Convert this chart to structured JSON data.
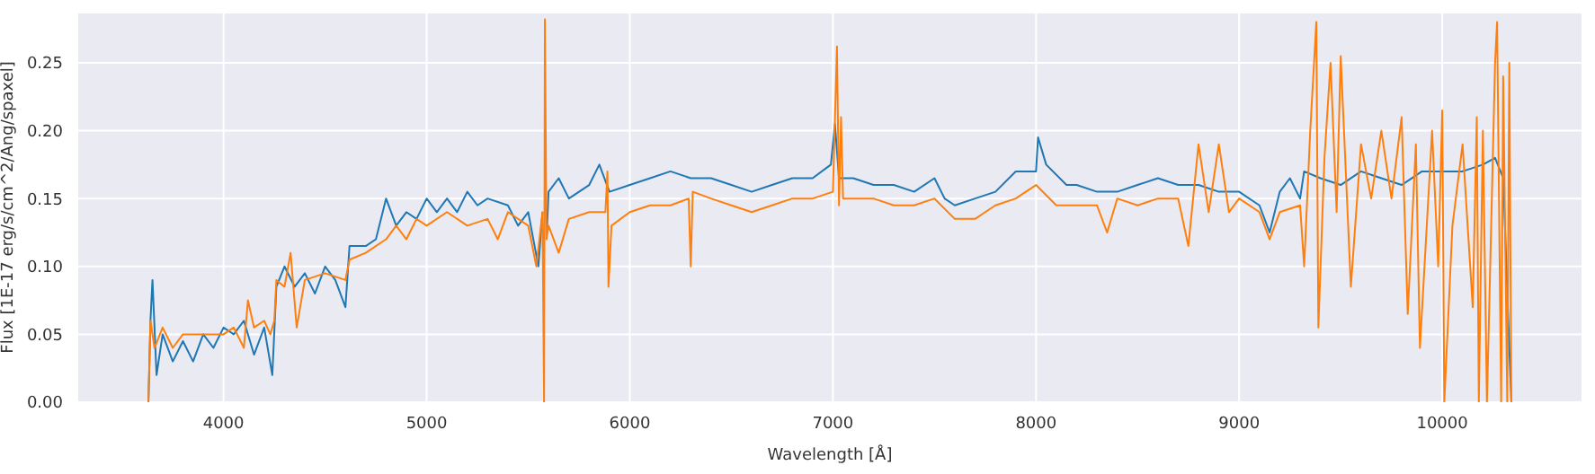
{
  "chart_data": {
    "type": "line",
    "xlabel": "Wavelength [Å]",
    "ylabel": "Flux [1E-17 erg/s/cm^2/Ang/spaxel]",
    "xlim": [
      3280,
      10690
    ],
    "ylim": [
      0,
      0.287
    ],
    "xticks": [
      4000,
      5000,
      6000,
      7000,
      8000,
      9000,
      10000
    ],
    "yticks": [
      {
        "value": 0,
        "label": "0.00"
      },
      {
        "value": 0.05,
        "label": "0.05"
      },
      {
        "value": 0.1,
        "label": "0.10"
      },
      {
        "value": 0.15,
        "label": "0.15"
      },
      {
        "value": 0.2,
        "label": "0.20"
      },
      {
        "value": 0.25,
        "label": "0.25"
      }
    ],
    "grid": true,
    "series": [
      {
        "color": "#1f77b4",
        "x": [
          3630,
          3640,
          3650,
          3670,
          3700,
          3750,
          3800,
          3850,
          3900,
          3950,
          4000,
          4050,
          4100,
          4150,
          4200,
          4240,
          4260,
          4300,
          4350,
          4400,
          4450,
          4500,
          4550,
          4600,
          4620,
          4700,
          4750,
          4800,
          4850,
          4900,
          4950,
          5000,
          5050,
          5100,
          5150,
          5200,
          5250,
          5300,
          5400,
          5450,
          5500,
          5550,
          5570,
          5580,
          5590,
          5600,
          5650,
          5700,
          5800,
          5850,
          5900,
          6000,
          6100,
          6200,
          6300,
          6400,
          6500,
          6600,
          6700,
          6800,
          6900,
          6990,
          7010,
          7030,
          7100,
          7200,
          7300,
          7400,
          7500,
          7550,
          7600,
          7700,
          7800,
          7900,
          8000,
          8010,
          8050,
          8150,
          8200,
          8300,
          8400,
          8500,
          8600,
          8700,
          8800,
          8900,
          9000,
          9100,
          9150,
          9200,
          9250,
          9300,
          9320,
          9400,
          9500,
          9600,
          9700,
          9800,
          9900,
          10000,
          10100,
          10200,
          10260,
          10300,
          10340
        ],
        "values": [
          0.0,
          0.06,
          0.09,
          0.02,
          0.05,
          0.03,
          0.045,
          0.03,
          0.05,
          0.04,
          0.055,
          0.05,
          0.06,
          0.035,
          0.055,
          0.02,
          0.085,
          0.1,
          0.085,
          0.095,
          0.08,
          0.1,
          0.09,
          0.07,
          0.115,
          0.115,
          0.12,
          0.15,
          0.13,
          0.14,
          0.135,
          0.15,
          0.14,
          0.15,
          0.14,
          0.155,
          0.145,
          0.15,
          0.145,
          0.13,
          0.14,
          0.1,
          0.14,
          null,
          0.12,
          0.155,
          0.165,
          0.15,
          0.16,
          0.175,
          0.155,
          0.16,
          0.165,
          0.17,
          0.165,
          0.165,
          0.16,
          0.155,
          0.16,
          0.165,
          0.165,
          0.175,
          0.205,
          0.165,
          0.165,
          0.16,
          0.16,
          0.155,
          0.165,
          0.15,
          0.145,
          0.15,
          0.155,
          0.17,
          0.17,
          0.195,
          0.175,
          0.16,
          0.16,
          0.155,
          0.155,
          0.16,
          0.165,
          0.16,
          0.16,
          0.155,
          0.155,
          0.145,
          0.125,
          0.155,
          0.165,
          0.15,
          0.17,
          0.165,
          0.16,
          0.17,
          0.165,
          0.16,
          0.17,
          0.17,
          0.17,
          0.175,
          0.18,
          0.165,
          0.0
        ]
      },
      {
        "color": "#ff7f0e",
        "x": [
          3630,
          3640,
          3660,
          3700,
          3750,
          3800,
          3900,
          4000,
          4050,
          4100,
          4120,
          4150,
          4200,
          4230,
          4250,
          4260,
          4300,
          4330,
          4360,
          4400,
          4500,
          4600,
          4620,
          4700,
          4800,
          4850,
          4900,
          4950,
          5000,
          5100,
          5200,
          5300,
          5350,
          5400,
          5500,
          5540,
          5570,
          5578,
          5582,
          5590,
          5600,
          5650,
          5700,
          5800,
          5880,
          5890,
          5895,
          5910,
          6000,
          6100,
          6200,
          6290,
          6300,
          6310,
          6400,
          6500,
          6600,
          6700,
          6800,
          6900,
          7000,
          7020,
          7030,
          7040,
          7050,
          7100,
          7200,
          7300,
          7400,
          7500,
          7600,
          7700,
          7750,
          7800,
          7900,
          8000,
          8100,
          8200,
          8300,
          8350,
          8400,
          8500,
          8600,
          8700,
          8750,
          8800,
          8850,
          8900,
          8950,
          9000,
          9100,
          9150,
          9200,
          9300,
          9320,
          9350,
          9380,
          9390,
          9420,
          9450,
          9480,
          9500,
          9550,
          9600,
          9650,
          9700,
          9750,
          9800,
          9830,
          9870,
          9890,
          9950,
          9980,
          10000,
          10010,
          10050,
          10100,
          10150,
          10170,
          10180,
          10200,
          10220,
          10260,
          10270,
          10290,
          10300,
          10320,
          10330,
          10340
        ],
        "values": [
          0.0,
          0.06,
          0.04,
          0.055,
          0.04,
          0.05,
          0.05,
          0.05,
          0.055,
          0.04,
          0.075,
          0.055,
          0.06,
          0.05,
          0.06,
          0.09,
          0.085,
          0.11,
          0.055,
          0.09,
          0.095,
          0.09,
          0.105,
          0.11,
          0.12,
          0.13,
          0.12,
          0.135,
          0.13,
          0.14,
          0.13,
          0.135,
          0.12,
          0.14,
          0.13,
          0.1,
          0.14,
          0.0,
          0.282,
          0.12,
          0.13,
          0.11,
          0.135,
          0.14,
          0.14,
          0.17,
          0.085,
          0.13,
          0.14,
          0.145,
          0.145,
          0.15,
          0.1,
          0.155,
          0.15,
          0.145,
          0.14,
          0.145,
          0.15,
          0.15,
          0.155,
          0.262,
          0.145,
          0.21,
          0.15,
          0.15,
          0.15,
          0.145,
          0.145,
          0.15,
          0.135,
          0.135,
          0.14,
          0.145,
          0.15,
          0.16,
          0.145,
          0.145,
          0.145,
          0.125,
          0.15,
          0.145,
          0.15,
          0.15,
          0.115,
          0.19,
          0.14,
          0.19,
          0.14,
          0.15,
          0.14,
          0.12,
          0.14,
          0.145,
          0.1,
          0.2,
          0.28,
          0.055,
          0.18,
          0.25,
          0.14,
          0.255,
          0.085,
          0.19,
          0.15,
          0.2,
          0.15,
          0.21,
          0.065,
          0.19,
          0.04,
          0.2,
          0.1,
          0.215,
          0.0,
          0.13,
          0.19,
          0.07,
          0.21,
          0.0,
          0.2,
          0.0,
          0.25,
          0.28,
          0.0,
          0.24,
          0.0,
          0.25,
          0.0
        ]
      }
    ]
  }
}
